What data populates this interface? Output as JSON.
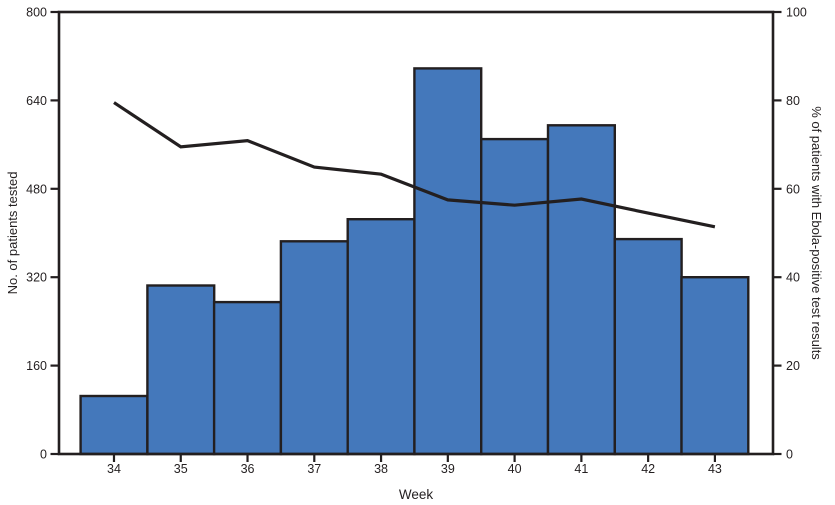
{
  "chart_data": {
    "type": "bar+line",
    "title": "",
    "categories": [
      "34",
      "35",
      "36",
      "37",
      "38",
      "39",
      "40",
      "41",
      "42",
      "43"
    ],
    "xlabel": "Week",
    "left_axis": {
      "label": "No. of patients tested",
      "min": 0,
      "max": 800,
      "ticks": [
        0,
        160,
        320,
        480,
        640,
        800
      ]
    },
    "right_axis": {
      "label": "% of patients with Ebola-positive test results",
      "min": 0,
      "max": 100,
      "ticks": [
        0,
        20,
        40,
        60,
        80,
        100
      ]
    },
    "series": [
      {
        "name": "No. of patients tested",
        "type": "bar",
        "yaxis": "left",
        "values": [
          105,
          305,
          275,
          385,
          425,
          698,
          570,
          595,
          389,
          320
        ]
      },
      {
        "name": "% of patients with Ebola-positive test results",
        "type": "line",
        "yaxis": "right",
        "values": [
          79.5,
          69.5,
          70.9,
          64.9,
          63.3,
          57.5,
          56.3,
          57.7,
          54.5,
          51.4
        ]
      }
    ],
    "grid": "off",
    "legend": "none",
    "colors": {
      "bar_fill": "#4478BB",
      "bar_border": "#231F20",
      "line": "#231F20",
      "axis": "#231F20",
      "text": "#231F20",
      "background": "#FFFFFF"
    }
  }
}
